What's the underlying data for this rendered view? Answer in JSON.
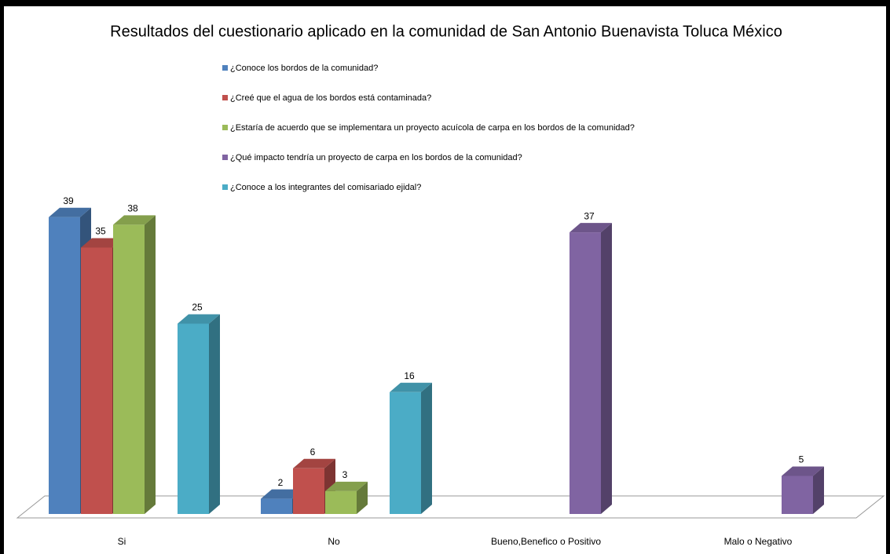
{
  "chart_data": {
    "type": "bar3d",
    "title": "Resultados del cuestionario aplicado en la comunidad de San Antonio Buenavista Toluca México",
    "categories": [
      "Si",
      "No",
      "Bueno,Benefico o Positivo",
      "Malo o Negativo"
    ],
    "series": [
      {
        "name": "¿Conoce los bordos de la comunidad?",
        "color": "#4f81bd",
        "values": [
          39,
          2,
          null,
          null
        ]
      },
      {
        "name": "¿Creé que el agua de los bordos está contaminada?",
        "color": "#c0504d",
        "values": [
          35,
          6,
          null,
          null
        ]
      },
      {
        "name": "¿Estaría de acuerdo que se implementara un proyecto  acuícola de carpa en los bordos  de la comunidad?",
        "color": "#9bbb59",
        "values": [
          38,
          3,
          null,
          null
        ]
      },
      {
        "name": "¿Qué impacto tendría un proyecto  de carpa en los bordos de la comunidad?",
        "color": "#8064a2",
        "values": [
          null,
          null,
          37,
          5
        ]
      },
      {
        "name": "¿Conoce a los integrantes del comisariado ejidal?",
        "color": "#4bacc6",
        "values": [
          25,
          16,
          null,
          null
        ]
      }
    ]
  }
}
